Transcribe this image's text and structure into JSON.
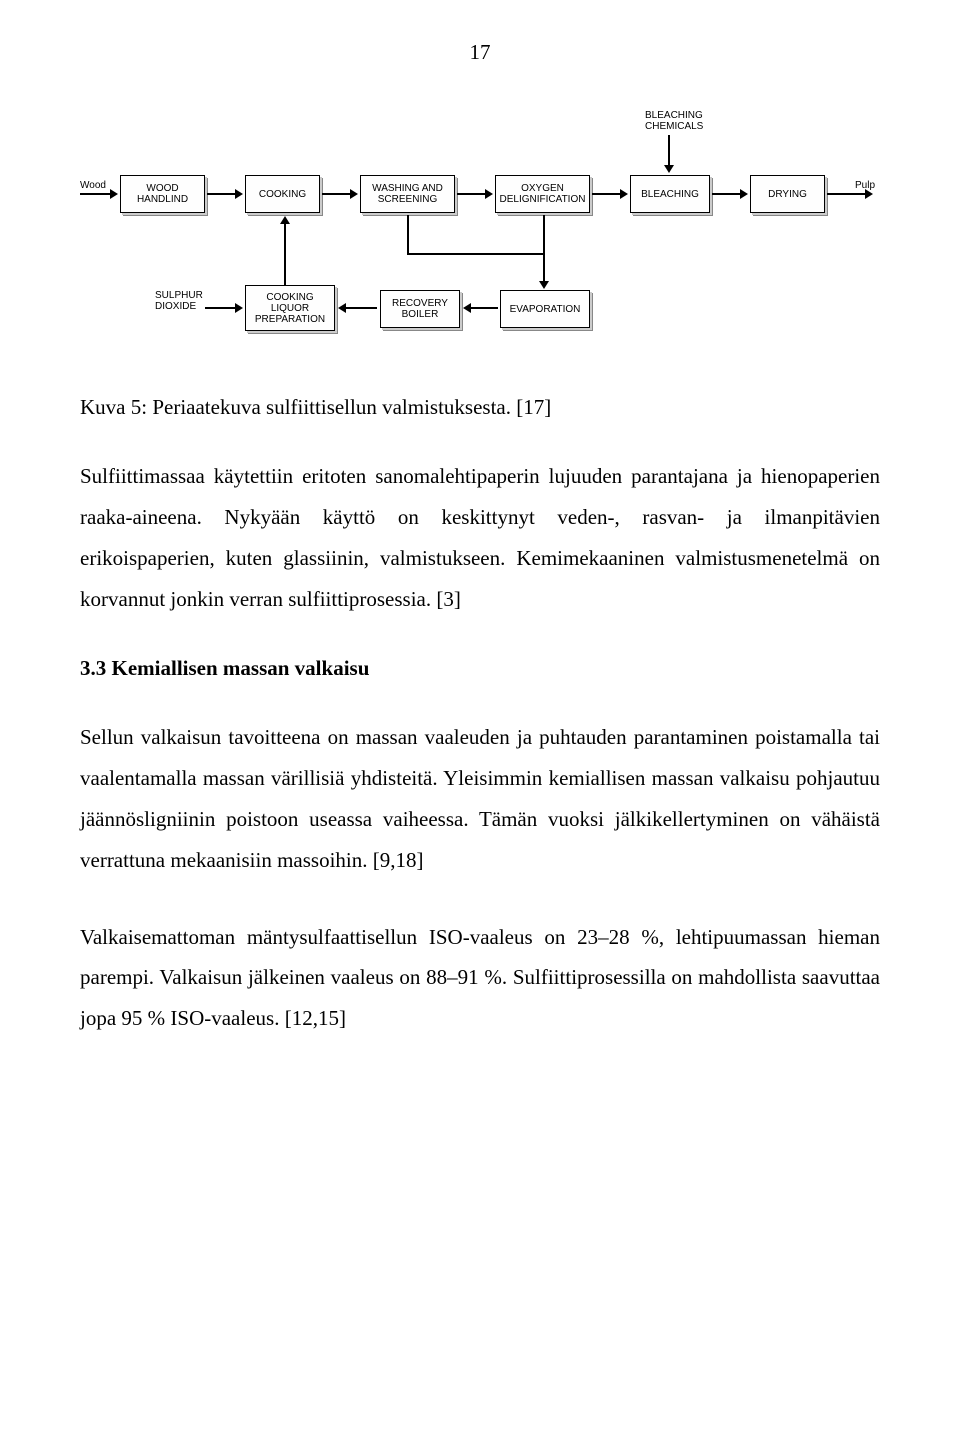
{
  "page_number": "17",
  "diagram": {
    "input_left": "Wood",
    "output_right": "Pulp",
    "top_input": "BLEACHING\nCHEMICALS",
    "bottom_input": "SULPHUR\nDIOXIDE",
    "boxes": {
      "wood_handling": "WOOD\nHANDLIND",
      "cooking": "COOKING",
      "washing": "WASHING AND\nSCREENING",
      "oxygen": "OXYGEN\nDELIGNIFICATION",
      "bleaching": "BLEACHING",
      "drying": "DRYING",
      "cooking_liquor": "COOKING\nLIQUOR\nPREPARATION",
      "recovery": "RECOVERY\nBOILER",
      "evaporation": "EVAPORATION"
    }
  },
  "figure_caption": "Kuva 5: Periaatekuva sulfiittisellun valmistuksesta. [17]",
  "paragraph1": "Sulfiittimassaa käytettiin eritoten sanomalehtipaperin lujuuden parantajana ja hienopaperien raaka-aineena. Nykyään käyttö on keskittynyt veden-, rasvan- ja ilmanpitävien erikoispaperien, kuten glassiinin, valmistukseen. Kemimekaaninen valmistusmenetelmä on korvannut jonkin verran sulfiittiprosessia. [3]",
  "section_heading": "3.3 Kemiallisen massan valkaisu",
  "paragraph2": "Sellun valkaisun tavoitteena on massan vaaleuden ja puhtauden parantaminen poistamalla tai vaalentamalla massan värillisiä yhdisteitä. Yleisimmin kemiallisen massan valkaisu pohjautuu jäännösligniinin poistoon useassa vaiheessa. Tämän vuoksi jälkikellertyminen on vähäistä verrattuna mekaanisiin massoihin. [9,18]",
  "paragraph3_part1": "Valkaisemattoman mäntysulfaattisellun ISO-vaaleus on ",
  "paragraph3_range1": "23–28 %",
  "paragraph3_part2": ", lehtipuumassan hieman parempi. Valkaisun jälkeinen vaaleus on ",
  "paragraph3_range2": "88–91 %",
  "paragraph3_part3": ". Sulfiittiprosessilla on mahdollista saavuttaa jopa 95 % ISO-vaaleus. [12,15]"
}
